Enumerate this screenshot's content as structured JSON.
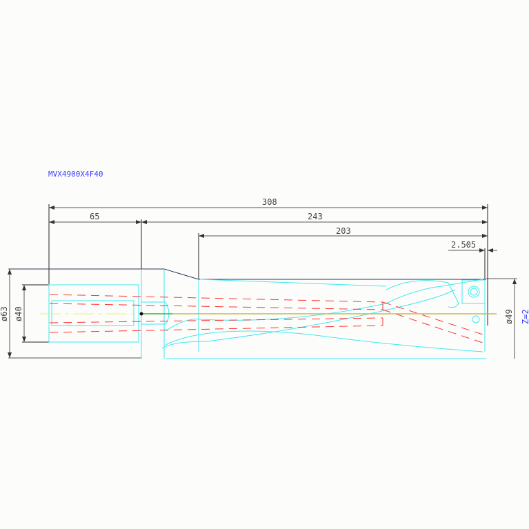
{
  "drawing": {
    "title": "MVX4900X4F40",
    "dimensions": {
      "overall_length": "308",
      "shank_length": "65",
      "body_length": "243",
      "flute_length": "203",
      "tip_offset": "2.505",
      "shank_diameter": "ø63",
      "bore_diameter": "ø40",
      "drill_diameter": "ø49"
    },
    "flutes": "Z=2"
  },
  "colors": {
    "outline": "#3ce8f0",
    "hidden": "#ff3030",
    "centerline": "#f0f060",
    "dimension": "#444444",
    "annotation": "#3b3bff"
  }
}
